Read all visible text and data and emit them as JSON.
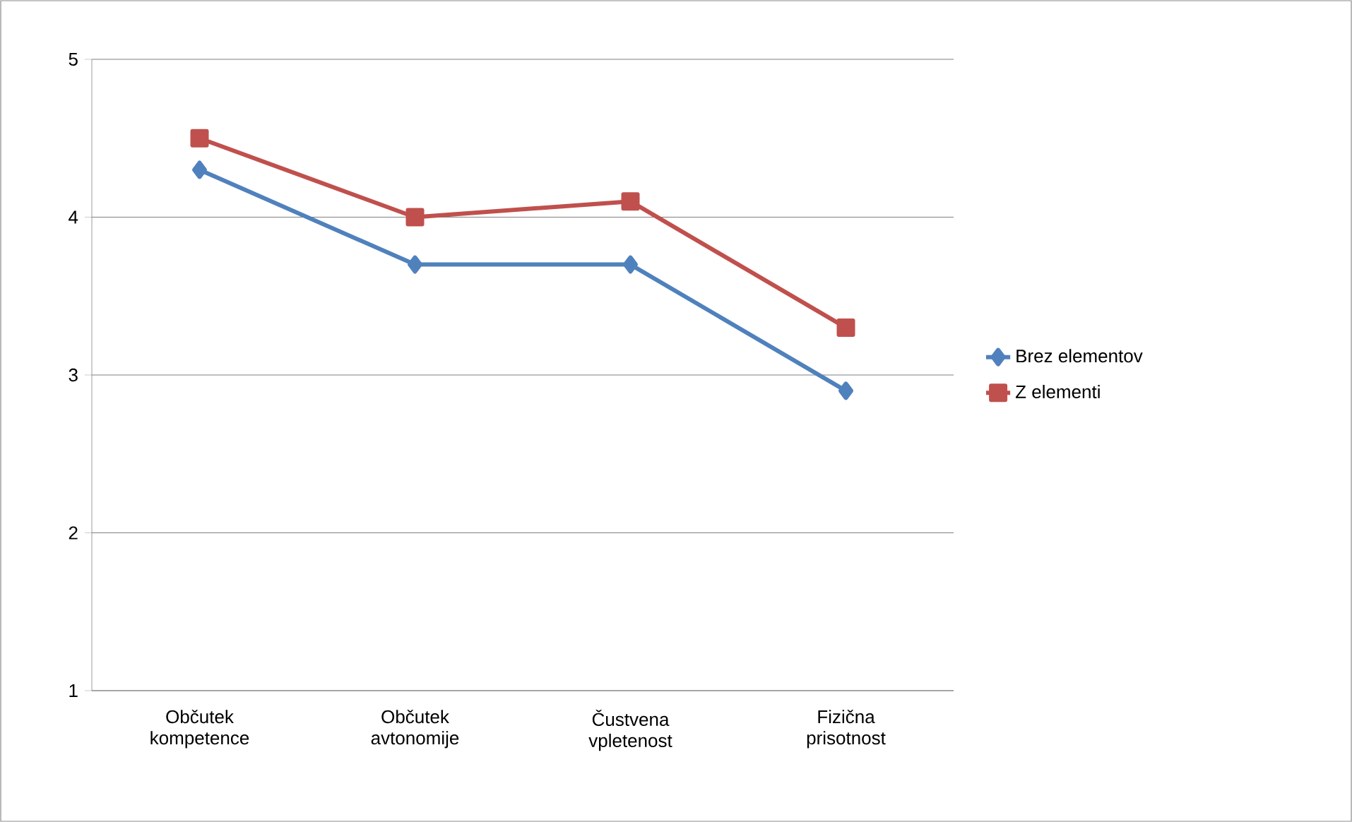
{
  "chart_data": {
    "type": "line",
    "categories": [
      "Občutek kompetence",
      "Občutek avtonomije",
      "Čustvena vpletenost",
      "Fizična prisotnost"
    ],
    "series": [
      {
        "name": "Brez elementov",
        "color": "#4f81bd",
        "marker": "diamond",
        "values": [
          4.3,
          3.7,
          3.7,
          2.9
        ]
      },
      {
        "name": "Z elementi",
        "color": "#c0504d",
        "marker": "square",
        "values": [
          4.5,
          4.0,
          4.1,
          3.3
        ]
      }
    ],
    "ylim": [
      1,
      5
    ],
    "yticks": [
      1,
      2,
      3,
      4,
      5
    ],
    "grid": "y",
    "legend": "right",
    "line_style": "solid"
  }
}
